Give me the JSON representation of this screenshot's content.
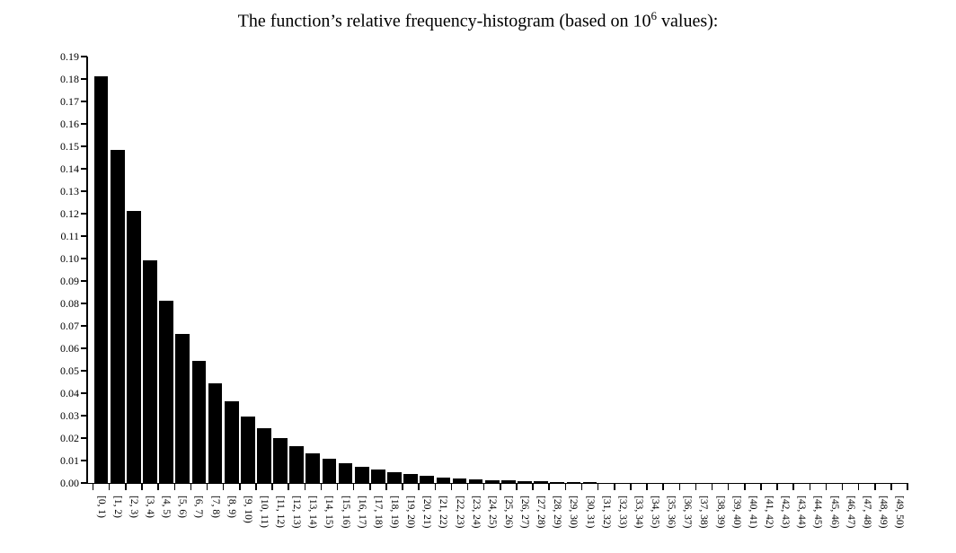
{
  "title": {
    "prefix": "The function’s relative frequency-histogram (based on 10",
    "superscript": "6",
    "suffix": " values):"
  },
  "colors": {
    "bar": "#000000",
    "axis": "#000000",
    "background": "#ffffff",
    "text": "#000000"
  },
  "chart_data": {
    "type": "bar",
    "title": "The function’s relative frequency-histogram (based on 10^6 values):",
    "xlabel": "",
    "ylabel": "",
    "ylim": [
      0,
      0.19
    ],
    "ytick_step": 0.01,
    "grid": false,
    "legend": false,
    "bar_color": "#000000",
    "x_tick_position": "bin-edges",
    "x_label_rotation_deg": 90,
    "ytick_labels": [
      "0.00",
      "0.01",
      "0.02",
      "0.03",
      "0.04",
      "0.05",
      "0.06",
      "0.07",
      "0.08",
      "0.09",
      "0.10",
      "0.11",
      "0.12",
      "0.13",
      "0.14",
      "0.15",
      "0.16",
      "0.17",
      "0.18",
      "0.19"
    ],
    "categories": [
      "[0, 1)",
      "[1, 2)",
      "[2, 3)",
      "[3, 4)",
      "[4, 5)",
      "[5, 6)",
      "[6, 7)",
      "[7, 8)",
      "[8, 9)",
      "[9, 10)",
      "[10, 11)",
      "[11, 12)",
      "[12, 13)",
      "[13, 14)",
      "[14, 15)",
      "[15, 16)",
      "[16, 17)",
      "[17, 18)",
      "[18, 19)",
      "[19, 20)",
      "[20, 21)",
      "[21, 22)",
      "[22, 23)",
      "[23, 24)",
      "[24, 25)",
      "[25, 26)",
      "[26, 27)",
      "[27, 28)",
      "[28, 29)",
      "[29, 30)",
      "[30, 31)",
      "[31, 32)",
      "[32, 33)",
      "[33, 34)",
      "[34, 35)",
      "[35, 36)",
      "[36, 37)",
      "[37, 38)",
      "[38, 39)",
      "[39, 40)",
      "[40, 41)",
      "[41, 42)",
      "[42, 43)",
      "[43, 44)",
      "[44, 45)",
      "[45, 46)",
      "[46, 47)",
      "[47, 48)",
      "[48, 49)",
      "[49, 50)"
    ],
    "values": [
      0.18127,
      0.14841,
      0.12151,
      0.09948,
      0.08144,
      0.06668,
      0.05459,
      0.04469,
      0.03659,
      0.02996,
      0.02453,
      0.02008,
      0.01644,
      0.01346,
      0.01102,
      0.00902,
      0.00739,
      0.00605,
      0.00495,
      0.00405,
      0.00332,
      0.00272,
      0.00222,
      0.00182,
      0.00149,
      0.00122,
      0.001,
      0.00082,
      0.00067,
      0.00055,
      0.00045,
      0.00037,
      0.0003,
      0.00025,
      0.0002,
      0.00017,
      0.00014,
      0.00011,
      9e-05,
      8e-05,
      6e-05,
      5e-05,
      4e-05,
      3e-05,
      3e-05,
      2e-05,
      2e-05,
      2e-05,
      1e-05,
      1e-05
    ]
  }
}
